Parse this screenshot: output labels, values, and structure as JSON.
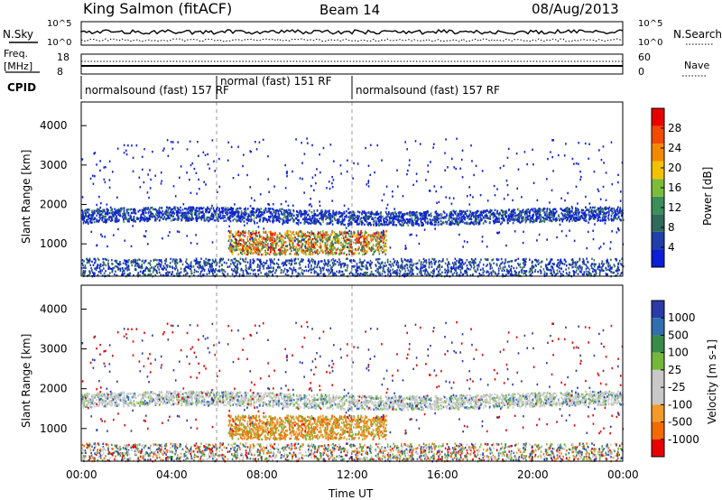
{
  "header": {
    "station": "King Salmon (fitACF)",
    "beam": "Beam 14",
    "date": "08/Aug/2013"
  },
  "colors": {
    "power_scale": [
      "#0b1fd6",
      "#1f3faa",
      "#2f6a5a",
      "#3c8f5a",
      "#7dbb3a",
      "#f2c200",
      "#f28a00",
      "#f24a00",
      "#e60000"
    ],
    "velocity_scale": [
      "#2a3aa8",
      "#2f6fb0",
      "#3a8a4a",
      "#74b83a",
      "#c8c8c8",
      "#c8c8c8",
      "#f39a2a",
      "#f26a00",
      "#e60000"
    ]
  },
  "chart_data": [
    {
      "type": "line",
      "name": "search-noise-panel",
      "left_label": "N.Sky",
      "left_ticks": [
        "10^5",
        "10^0"
      ],
      "right_label": "N.Search",
      "right_ticks": [
        "10^5",
        "10^0"
      ]
    },
    {
      "type": "line",
      "name": "frequency-panel",
      "left_label": "Freq.",
      "left_unit": "[MHz]",
      "left_ticks": [
        "18",
        "8"
      ],
      "ylim_left": [
        8,
        18
      ],
      "right_label": "Nave",
      "right_ticks": [
        "60",
        "0"
      ],
      "ylim_right": [
        0,
        60
      ]
    },
    {
      "type": "table",
      "name": "cpid-panel",
      "label": "CPID",
      "segments": [
        {
          "label": "normalsound (fast) 157 RF",
          "start": "00:00",
          "end": "06:00"
        },
        {
          "label": "normal (fast) 151 RF",
          "start": "06:00",
          "end": "12:00"
        },
        {
          "label": "normalsound (fast) 157 RF",
          "start": "12:00",
          "end": "24:00"
        }
      ]
    },
    {
      "type": "heatmap",
      "name": "power-panel",
      "ylabel": "Slant Range [km]",
      "yticks": [
        "1000",
        "2000",
        "3000",
        "4000"
      ],
      "ylim": [
        180,
        4600
      ],
      "colorbar_label": "Power [dB]",
      "colorbar_ticks": [
        "4",
        "8",
        "12",
        "16",
        "20",
        "24",
        "28"
      ],
      "clim": [
        0,
        30
      ]
    },
    {
      "type": "heatmap",
      "name": "velocity-panel",
      "ylabel": "Slant Range [km]",
      "yticks": [
        "1000",
        "2000",
        "3000",
        "4000"
      ],
      "ylim": [
        180,
        4600
      ],
      "colorbar_label": "Velocity [m s-1]",
      "colorbar_ticks": [
        "1000",
        "500",
        "100",
        "25",
        "-25",
        "-100",
        "-500",
        "-1000"
      ],
      "xlabel": "Time UT",
      "xticks": [
        "00:00",
        "04:00",
        "08:00",
        "12:00",
        "16:00",
        "20:00",
        "00:00"
      ],
      "xlim_hours": [
        0,
        24
      ]
    }
  ]
}
